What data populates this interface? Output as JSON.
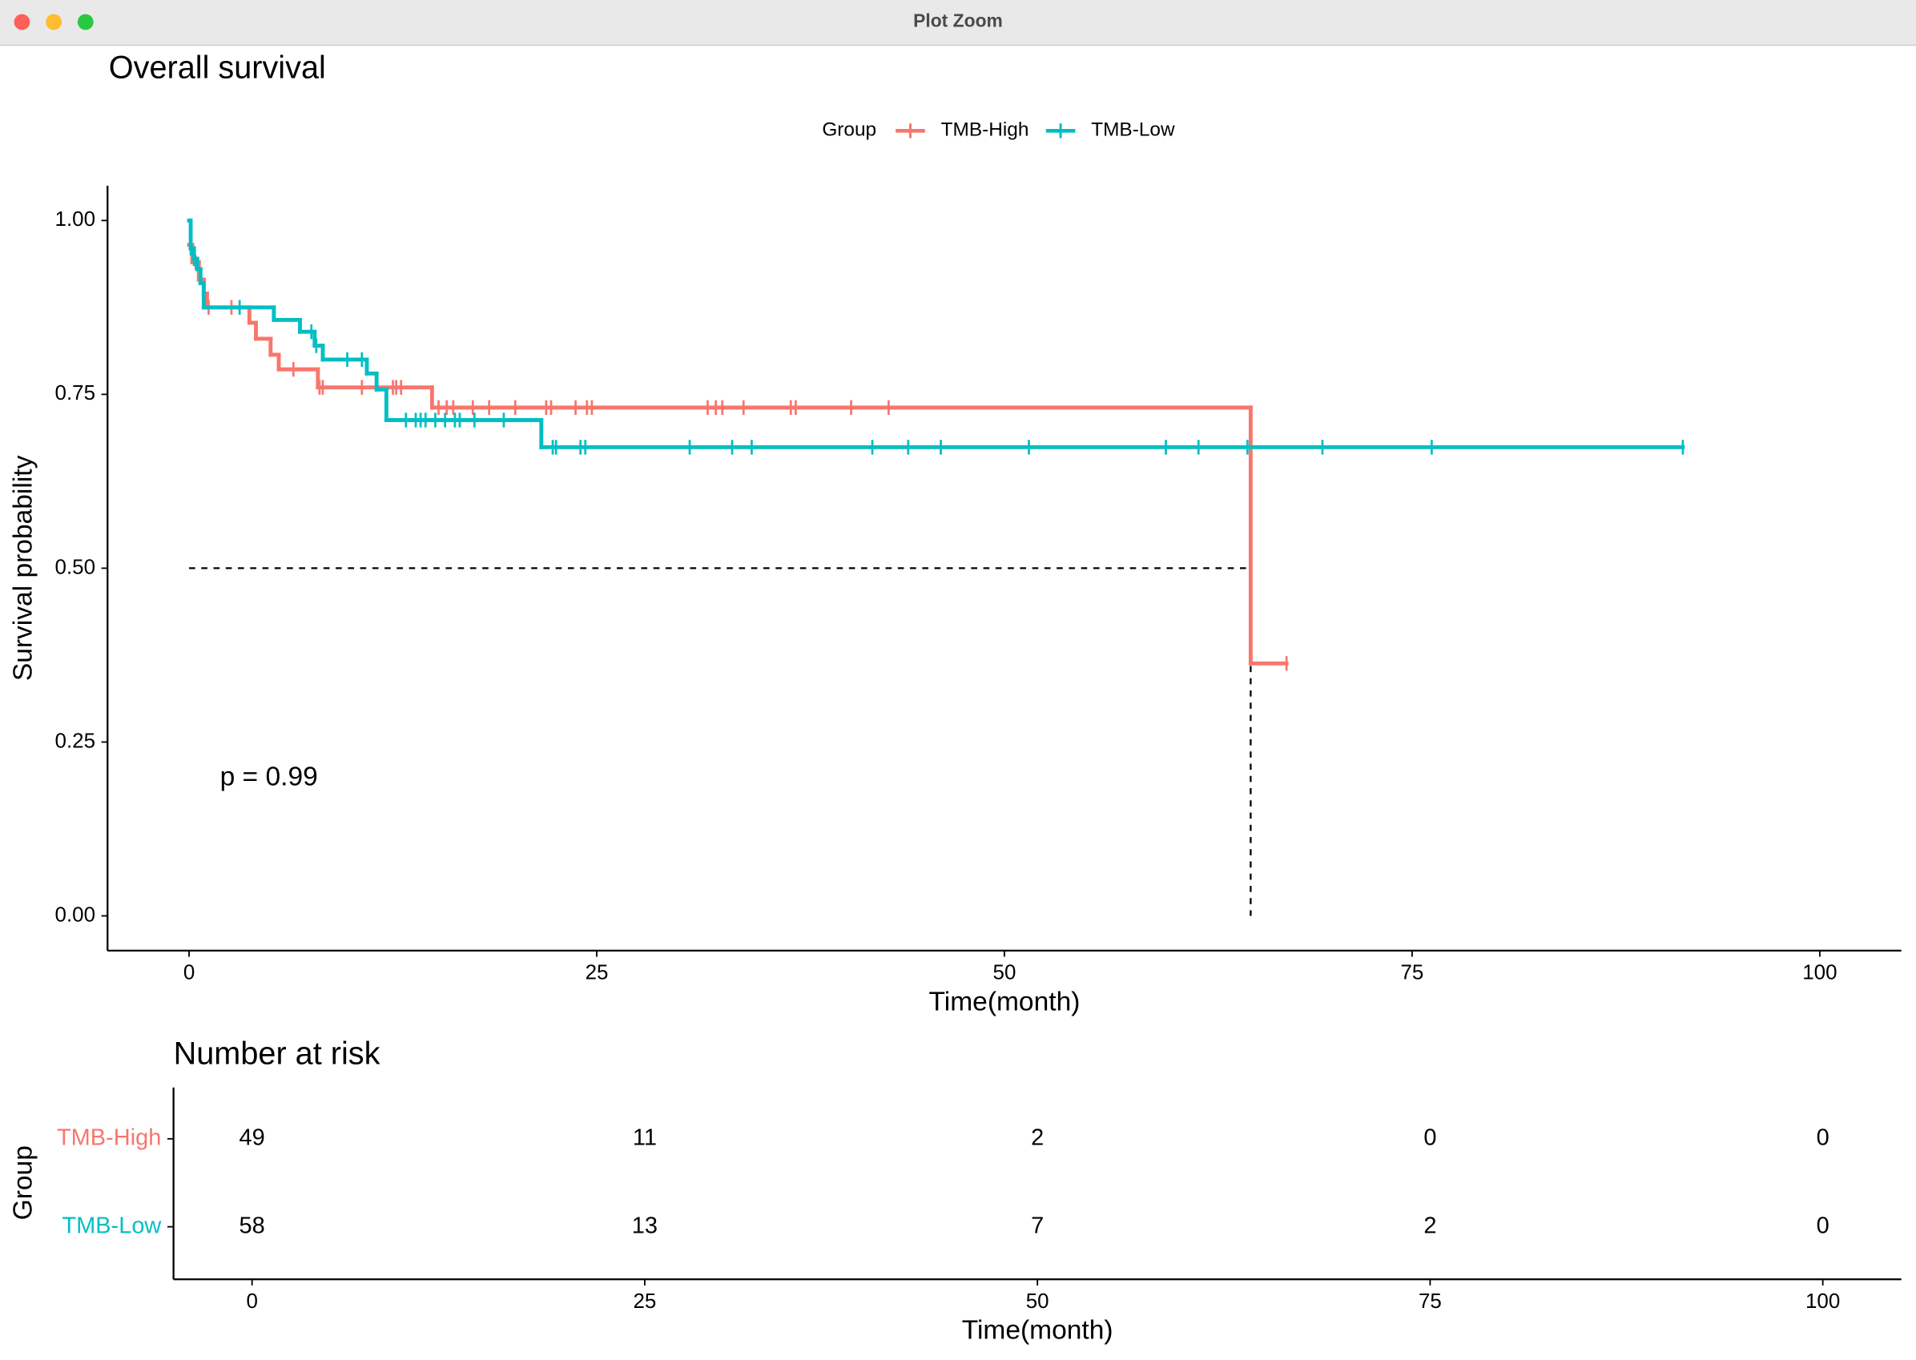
{
  "window_title": "Plot Zoom",
  "chart_data": [
    {
      "type": "survival",
      "title": "Overall survival",
      "xlabel": "Time(month)",
      "ylabel": "Survival probability",
      "legend_title": "Group",
      "legend": "top",
      "annotation": "p = 0.99",
      "xlim": [
        -5,
        105
      ],
      "ylim": [
        -0.05,
        1.05
      ],
      "xticks": [
        0,
        25,
        50,
        75,
        100
      ],
      "yticks": [
        {
          "value": 0,
          "label": "0.00"
        },
        {
          "value": 0.25,
          "label": "0.25"
        },
        {
          "value": 0.5,
          "label": "0.50"
        },
        {
          "value": 0.75,
          "label": "0.75"
        },
        {
          "value": 1,
          "label": "1.00"
        }
      ],
      "median_line": {
        "x": 65.1,
        "y": 0.5
      },
      "series": [
        {
          "name": "TMB-High",
          "color": "#F8766D",
          "x": [
            0,
            0.2,
            0.6,
            0.9,
            1.1,
            3.7,
            4.1,
            5.0,
            5.5,
            7.9,
            14.9,
            65.1
          ],
          "values": [
            0.965,
            0.94,
            0.915,
            0.895,
            0.875,
            0.853,
            0.83,
            0.807,
            0.786,
            0.76,
            0.731,
            0.363
          ],
          "censor": [
            0.15,
            0.4,
            1.2,
            2.6,
            6.4,
            8.0,
            8.2,
            10.6,
            12.5,
            12.7,
            13.0,
            15.3,
            15.8,
            16.2,
            17.4,
            18.4,
            20.0,
            21.9,
            22.2,
            23.7,
            24.4,
            24.7,
            31.8,
            32.3,
            32.7,
            34.0,
            36.9,
            37.2,
            40.6,
            42.9,
            67.3
          ]
        },
        {
          "name": "TMB-Low",
          "color": "#00BFC4",
          "x": [
            0,
            0.1,
            0.3,
            0.5,
            0.7,
            0.9,
            5.2,
            6.8,
            7.7,
            8.2,
            10.9,
            11.5,
            12.1,
            21.6
          ],
          "values": [
            1,
            0.96,
            0.945,
            0.93,
            0.91,
            0.875,
            0.857,
            0.84,
            0.82,
            0.8,
            0.78,
            0.757,
            0.713,
            0.674
          ],
          "censor": [
            0.1,
            0.3,
            3.1,
            7.5,
            7.8,
            9.7,
            10.6,
            13.3,
            13.9,
            14.2,
            14.5,
            15.1,
            15.7,
            16.3,
            16.6,
            17.5,
            19.3,
            22.3,
            22.5,
            24.0,
            24.3,
            30.7,
            33.3,
            34.5,
            41.9,
            44.1,
            46.1,
            51.5,
            59.9,
            61.9,
            64.9,
            69.5,
            76.2,
            91.6
          ]
        }
      ]
    },
    {
      "type": "risk-table",
      "title": "Number at risk",
      "xlabel": "Time(month)",
      "ylabel": "Group",
      "xlim": [
        -5,
        105
      ],
      "xticks": [
        0,
        25,
        50,
        75,
        100
      ],
      "series": [
        {
          "name": "TMB-High",
          "color": "#F8766D",
          "values": [
            49,
            11,
            2,
            0,
            0
          ]
        },
        {
          "name": "TMB-Low",
          "color": "#00BFC4",
          "values": [
            58,
            13,
            7,
            2,
            0
          ]
        }
      ]
    }
  ]
}
